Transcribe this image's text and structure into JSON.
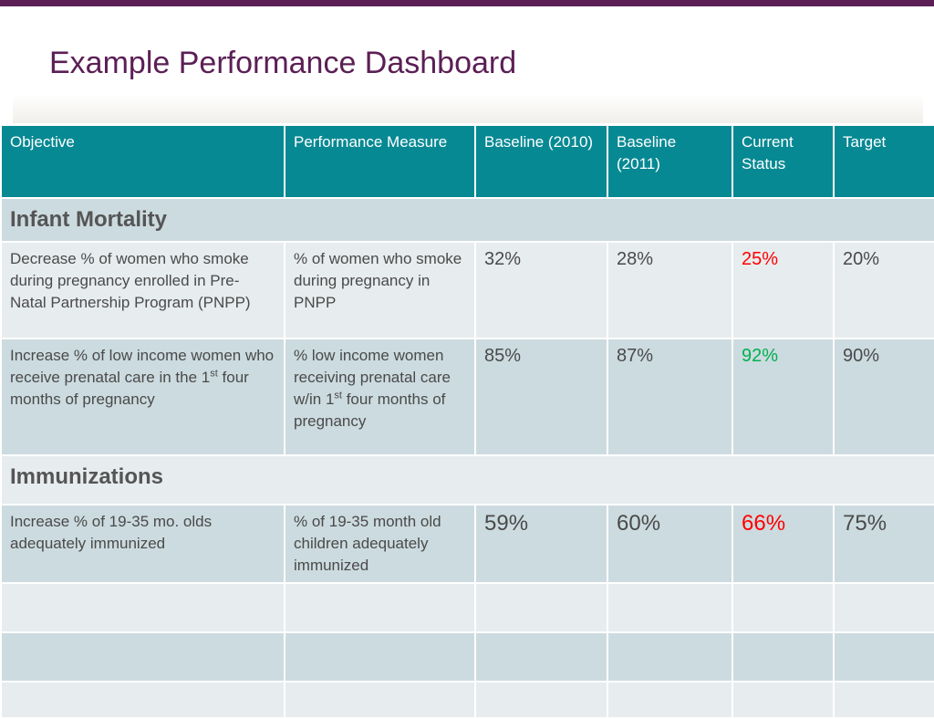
{
  "page": {
    "title": "Example Performance Dashboard"
  },
  "colors": {
    "accent": "#5b1f55",
    "header_bg": "#078993",
    "status_red": "#ff0000",
    "status_green": "#00b050"
  },
  "table": {
    "headers": {
      "objective": "Objective",
      "measure": "Performance Measure",
      "baseline_2010": "Baseline (2010)",
      "baseline_2011": "Baseline (2011)",
      "current": "Current Status",
      "target": "Target"
    },
    "sections": [
      {
        "title": "Infant Mortality",
        "rows": [
          {
            "objective": "Decrease % of women who smoke during pregnancy enrolled in Pre-Natal Partnership Program (PNPP)",
            "measure": "% of women who smoke during pregnancy in PNPP",
            "baseline_2010": "32%",
            "baseline_2011": "28%",
            "current": "25%",
            "current_color": "red",
            "target": "20%"
          },
          {
            "objective_pre": "Increase % of low income women who receive prenatal care in the 1",
            "objective_sup": "st",
            "objective_post": " four months of pregnancy",
            "measure_pre": "% low income women receiving prenatal care w/in 1",
            "measure_sup": "st",
            "measure_post": " four months of pregnancy",
            "baseline_2010": "85%",
            "baseline_2011": "87%",
            "current": "92%",
            "current_color": "green",
            "target": "90%"
          }
        ]
      },
      {
        "title": "Immunizations",
        "rows": [
          {
            "objective": "Increase % of 19-35 mo. olds adequately immunized",
            "measure": "% of 19-35 month old children adequately immunized",
            "baseline_2010": "59%",
            "baseline_2011": "60%",
            "current": "66%",
            "current_color": "red",
            "target": "75%"
          }
        ]
      }
    ]
  }
}
